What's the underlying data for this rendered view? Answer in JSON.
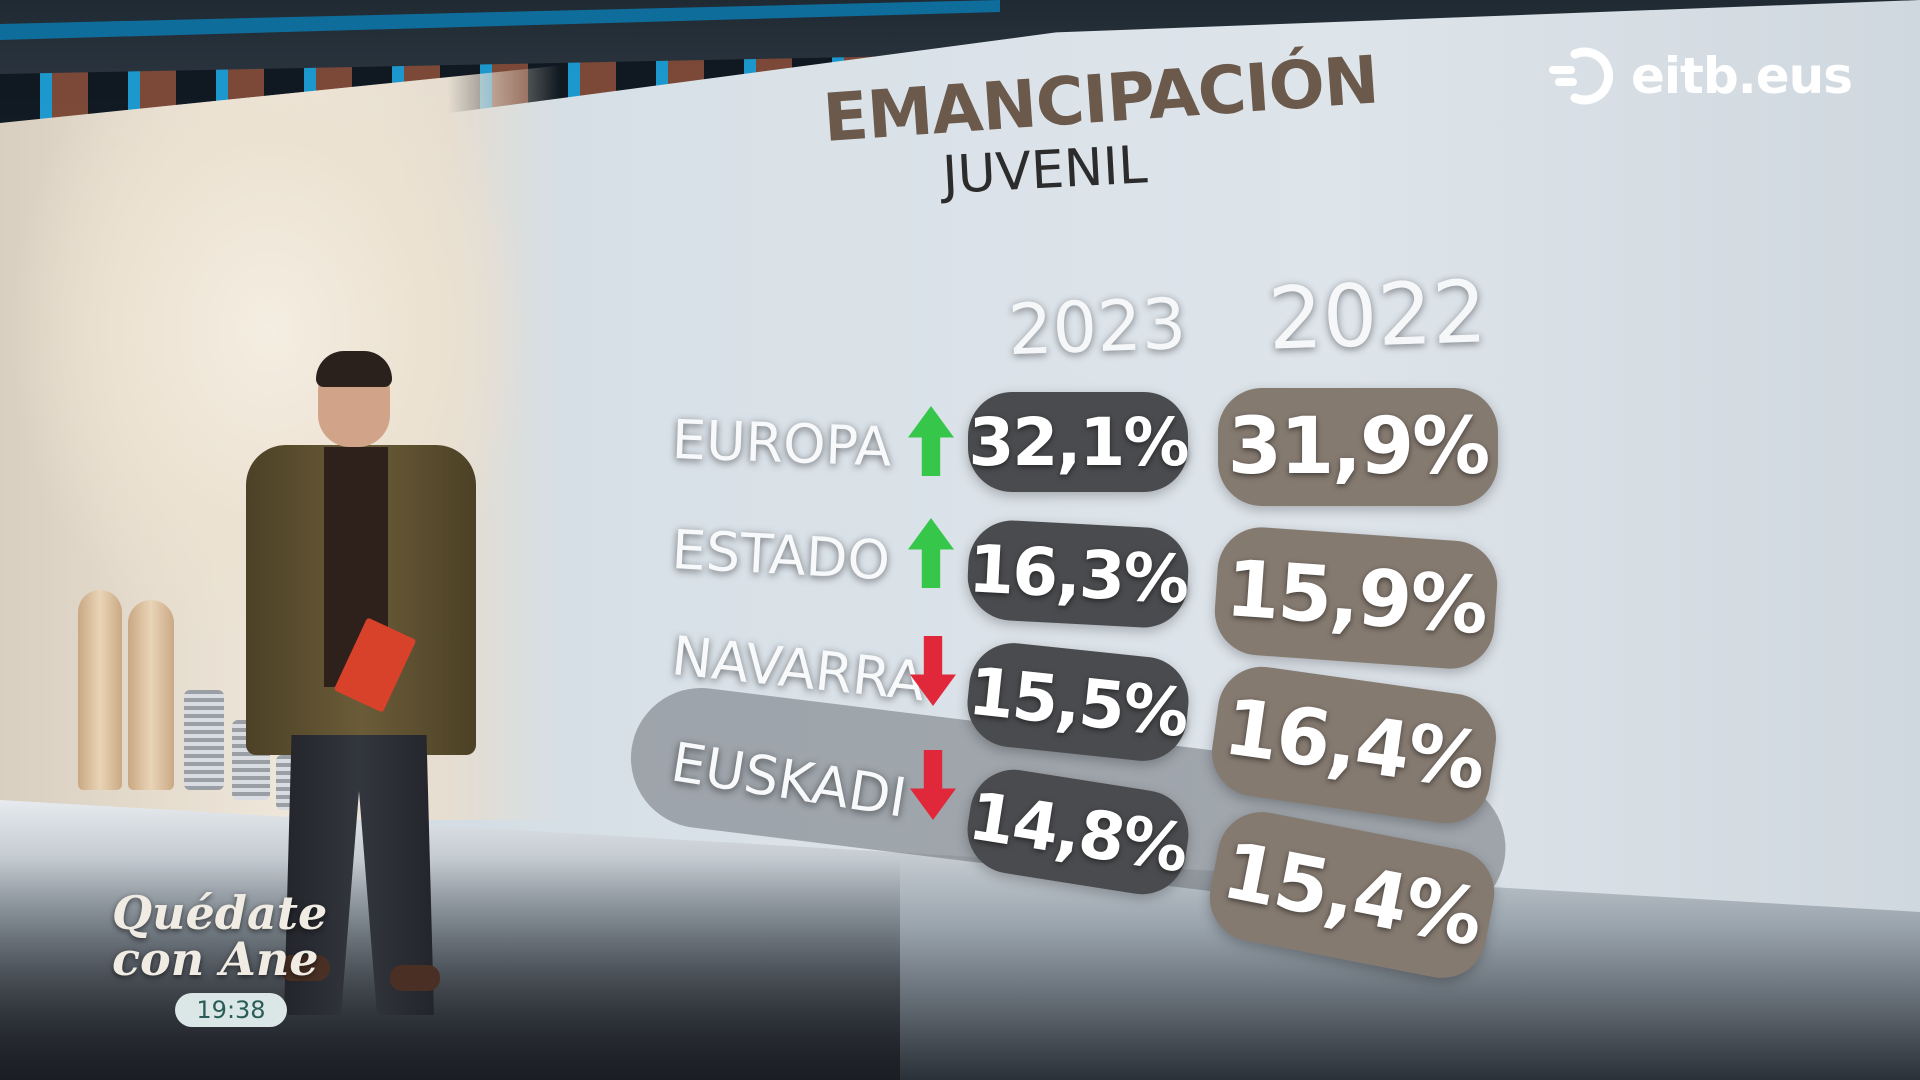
{
  "graphic": {
    "title": "EMANCIPACIÓN",
    "subtitle": "JUVENIL",
    "years": [
      "2023",
      "2022"
    ],
    "rows": [
      {
        "region": "EUROPA",
        "trend": "up",
        "trend_icon": "arrow-up-icon",
        "v2023": "32,1%",
        "v2022": "31,9%"
      },
      {
        "region": "ESTADO",
        "trend": "up",
        "trend_icon": "arrow-up-icon",
        "v2023": "16,3%",
        "v2022": "15,9%"
      },
      {
        "region": "NAVARRA",
        "trend": "down",
        "trend_icon": "arrow-down-icon",
        "v2023": "15,5%",
        "v2022": "16,4%"
      },
      {
        "region": "EUSKADI",
        "trend": "down",
        "trend_icon": "arrow-down-icon",
        "v2023": "14,8%",
        "v2022": "15,4%"
      }
    ],
    "colors": {
      "up": "#36c64a",
      "down": "#e0283a",
      "pill_2023": "#4a4b4e",
      "pill_2022": "#857a70",
      "title": "#6b5a4c"
    }
  },
  "logo": {
    "text": "eitb.eus",
    "icon": "eitb-logo-icon"
  },
  "program": {
    "title_line1": "Quédate",
    "title_line2": "con Ane",
    "time": "19:38"
  }
}
